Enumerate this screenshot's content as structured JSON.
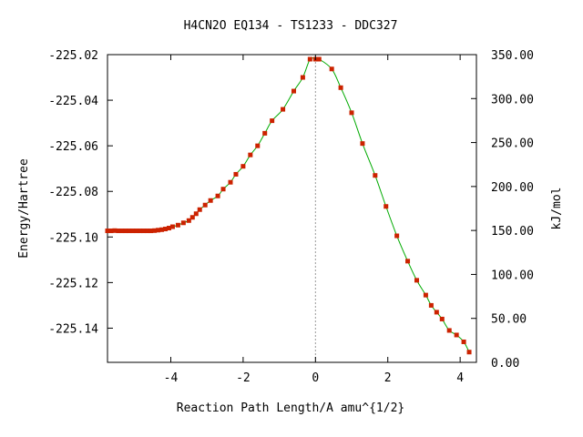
{
  "chart_data": {
    "type": "line",
    "title": "H4CN2O   EQ134 - TS1233 - DDC327",
    "xlabel": "Reaction Path Length/A amu^{1/2}",
    "ylabel": "Energy/Hartree",
    "y2label": "kJ/mol",
    "xlim": [
      -5.75,
      4.45
    ],
    "ylim": [
      -225.155,
      -225.02
    ],
    "y2lim": [
      0,
      350
    ],
    "x_ticks": [
      {
        "value": -4,
        "label": "-4"
      },
      {
        "value": -2,
        "label": "-2"
      },
      {
        "value": 0,
        "label": "0"
      },
      {
        "value": 2,
        "label": "2"
      },
      {
        "value": 4,
        "label": "4"
      }
    ],
    "y_ticks": [
      {
        "value": -225.02,
        "label": "-225.02"
      },
      {
        "value": -225.04,
        "label": "-225.04"
      },
      {
        "value": -225.06,
        "label": "-225.06"
      },
      {
        "value": -225.08,
        "label": "-225.08"
      },
      {
        "value": -225.1,
        "label": "-225.10"
      },
      {
        "value": -225.12,
        "label": "-225.12"
      },
      {
        "value": -225.14,
        "label": "-225.14"
      }
    ],
    "y2_ticks": [
      {
        "value": 350,
        "label": "350.00"
      },
      {
        "value": 300,
        "label": "300.00"
      },
      {
        "value": 250,
        "label": "250.00"
      },
      {
        "value": 200,
        "label": "200.00"
      },
      {
        "value": 150,
        "label": "150.00"
      },
      {
        "value": 100,
        "label": "100.00"
      },
      {
        "value": 50,
        "label": "50.00"
      },
      {
        "value": 0,
        "label": "0.00"
      }
    ],
    "ts_marker_x": 0,
    "line_color": "#00aa00",
    "point_color": "#cc2200",
    "marker_line_color": "#999999",
    "series": [
      {
        "x": [
          -5.75,
          -5.65,
          -5.55,
          -5.45,
          -5.35,
          -5.25,
          -5.15,
          -5.05,
          -4.95,
          -4.85,
          -4.75,
          -4.65,
          -4.55,
          -4.45,
          -4.35,
          -4.25,
          -4.15,
          -4.05,
          -3.95,
          -3.8,
          -3.65,
          -3.5,
          -3.4,
          -3.3,
          -3.2,
          -3.05,
          -2.9,
          -2.7,
          -2.55,
          -2.35,
          -2.2,
          -2.0,
          -1.8,
          -1.6,
          -1.4,
          -1.2,
          -0.9,
          -0.6,
          -0.35,
          -0.15,
          0.0,
          0.1,
          0.45,
          0.7,
          1.0,
          1.3,
          1.65,
          1.95,
          2.25,
          2.55,
          2.8,
          3.05,
          3.2,
          3.35,
          3.5,
          3.7,
          3.9,
          4.1,
          4.25
        ],
        "y": [
          -225.0973,
          -225.0973,
          -225.0972,
          -225.0973,
          -225.0973,
          -225.0973,
          -225.0973,
          -225.0973,
          -225.0973,
          -225.0973,
          -225.0973,
          -225.0973,
          -225.0973,
          -225.0972,
          -225.097,
          -225.0968,
          -225.0965,
          -225.0961,
          -225.0955,
          -225.0948,
          -225.0938,
          -225.0928,
          -225.0914,
          -225.0898,
          -225.088,
          -225.086,
          -225.084,
          -225.082,
          -225.079,
          -225.076,
          -225.0725,
          -225.069,
          -225.064,
          -225.06,
          -225.0545,
          -225.049,
          -225.044,
          -225.036,
          -225.03,
          -225.022,
          -225.022,
          -225.022,
          -225.0263,
          -225.0345,
          -225.0455,
          -225.059,
          -225.073,
          -225.0866,
          -225.0995,
          -225.1106,
          -225.119,
          -225.1255,
          -225.13,
          -225.133,
          -225.136,
          -225.141,
          -225.143,
          -225.146,
          -225.1505
        ]
      }
    ]
  }
}
